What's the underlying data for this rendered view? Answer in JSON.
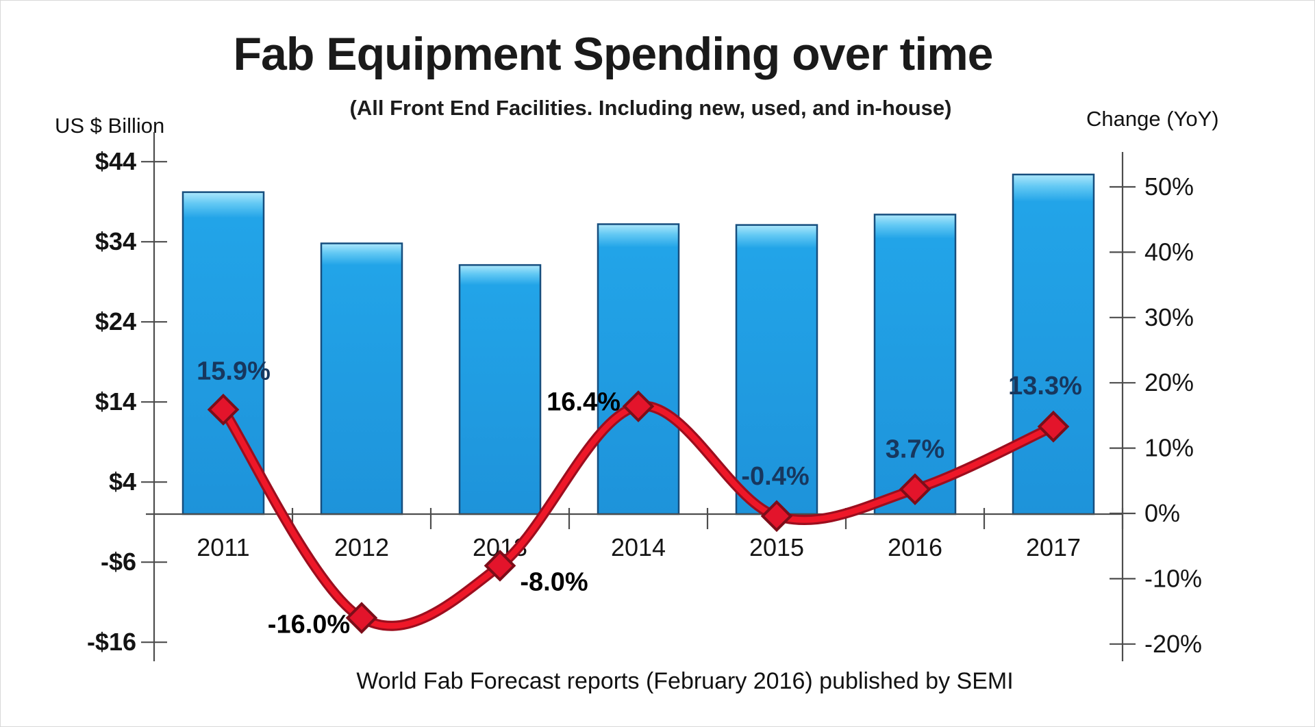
{
  "page": {
    "background": "#ffffff"
  },
  "header": {
    "title": "Fab Equipment Spending over time",
    "subtitle": "(All Front End Facilities. Including new, used, and in-house)"
  },
  "footer": {
    "source": "World Fab Forecast reports (February 2016) published by SEMI"
  },
  "axes": {
    "left": {
      "title": "US $ Billion",
      "tick_labels": [
        "$44",
        "$34",
        "$24",
        "$14",
        "$4",
        "-$6",
        "-$16"
      ],
      "tick_values": [
        44,
        34,
        24,
        14,
        4,
        -6,
        -16
      ],
      "range": [
        -16,
        44
      ]
    },
    "right": {
      "title": "Change (YoY)",
      "tick_labels": [
        "50%",
        "40%",
        "30%",
        "20%",
        "10%",
        "0%",
        "-10%",
        "-20%"
      ],
      "tick_values": [
        50,
        40,
        30,
        20,
        10,
        0,
        -10,
        -20
      ],
      "range": [
        -20,
        50
      ]
    },
    "x": {
      "tick_labels": [
        "2011",
        "2012",
        "2013",
        "2014",
        "2015",
        "2016",
        "2017"
      ]
    }
  },
  "chart_data": {
    "type": "combo: bar + line",
    "title": "Fab Equipment Spending over time",
    "subtitle": "(All Front End Facilities. Including new, used, and in-house)",
    "categories": [
      "2011",
      "2012",
      "2013",
      "2014",
      "2015",
      "2016",
      "2017"
    ],
    "series": [
      {
        "name": "Fab equipment spending",
        "type": "bar",
        "axis": "left",
        "unit": "US$ billion",
        "values": [
          40.2,
          33.8,
          31.1,
          36.2,
          36.1,
          37.4,
          42.4
        ],
        "estimated_from_axis": true
      },
      {
        "name": "Change (YoY)",
        "type": "line",
        "axis": "right",
        "unit": "%",
        "values": [
          15.9,
          -16.0,
          -8.0,
          16.4,
          -0.4,
          3.7,
          13.3
        ],
        "point_labels": [
          "15.9%",
          "-16.0%",
          "-8.0%",
          "16.4%",
          "-0.4%",
          "3.7%",
          "13.3%"
        ],
        "point_label_colors": [
          "#17375e",
          "#000000",
          "#000000",
          "#000000",
          "#17375e",
          "#17375e",
          "#17375e"
        ]
      }
    ],
    "ylabel_left": "US $ Billion",
    "ylabel_right": "Change (YoY)",
    "left_ylim": [
      -16,
      44
    ],
    "right_ylim": [
      -20,
      50
    ],
    "grid": false,
    "legend": "none",
    "source_note": "World Fab Forecast reports (February 2016) published by SEMI"
  },
  "colors": {
    "background": "#ffffff",
    "bar_fill": "#22a4e8",
    "bar_fill_bottom": "#1e93da",
    "bar_highlight": "#aee7fb",
    "bar_border": "#164e7e",
    "line_core": "#ee1728",
    "line_outline": "#9c0e1e",
    "marker_fill": "#e3142b",
    "marker_border": "#7c0d19",
    "axis": "#4d4d4d",
    "tick_text": "#141414",
    "label_navy": "#17375e",
    "label_black": "#000000"
  }
}
